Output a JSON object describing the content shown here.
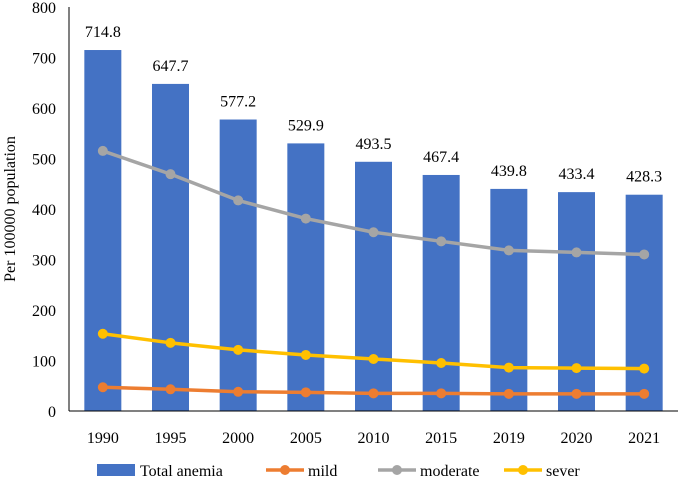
{
  "chart_data": {
    "type": "bar",
    "categories": [
      "1990",
      "1995",
      "2000",
      "2005",
      "2010",
      "2015",
      "2019",
      "2020",
      "2021"
    ],
    "bar_series": {
      "name": "Total anemia",
      "color": "#4472C4",
      "values": [
        714.8,
        647.7,
        577.2,
        529.9,
        493.5,
        467.4,
        439.8,
        433.4,
        428.3
      ],
      "labels": [
        "714.8",
        "647.7",
        "577.2",
        "529.9",
        "493.5",
        "467.4",
        "439.8",
        "433.4",
        "428.3"
      ]
    },
    "line_series": [
      {
        "name": "mild",
        "color": "#ED7D31",
        "values": [
          47,
          43,
          38,
          37,
          35,
          35,
          34,
          34,
          34
        ]
      },
      {
        "name": "moderate",
        "color": "#A5A5A5",
        "values": [
          515,
          469,
          417,
          381,
          354,
          336,
          318,
          314,
          310
        ]
      },
      {
        "name": "sever",
        "color": "#FFC000",
        "values": [
          153,
          135,
          121,
          111,
          103,
          95,
          86,
          85,
          84
        ]
      }
    ],
    "ylabel": "Per 100000 population",
    "xlabel": "",
    "ylim": [
      0,
      800
    ],
    "yticks": [
      "0",
      "100",
      "200",
      "300",
      "400",
      "500",
      "600",
      "700",
      "800"
    ],
    "legend": [
      "Total anemia",
      "mild",
      "moderate",
      "sever"
    ],
    "legend_position": "bottom",
    "grid": false
  }
}
